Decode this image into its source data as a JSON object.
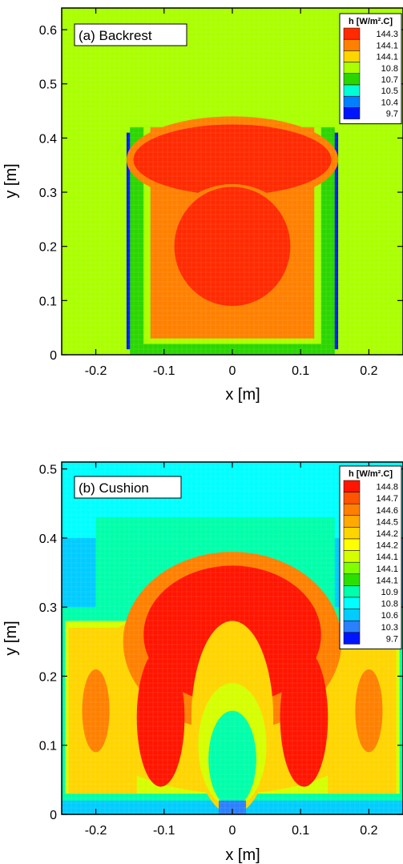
{
  "chart_data": [
    {
      "type": "heatmap",
      "panel_label": "(a) Backrest",
      "xlabel": "x [m]",
      "ylabel": "y [m]",
      "xlim": [
        -0.25,
        0.25
      ],
      "ylim": [
        0,
        0.64
      ],
      "x_ticks": [
        "-0.2",
        "-0.1",
        "0",
        "0.1",
        "0.2"
      ],
      "x_tick_values": [
        -0.2,
        -0.1,
        0,
        0.1,
        0.2
      ],
      "y_ticks": [
        "0",
        "0.1",
        "0.2",
        "0.3",
        "0.4",
        "0.5",
        "0.6"
      ],
      "y_tick_values": [
        0,
        0.1,
        0.2,
        0.3,
        0.4,
        0.5,
        0.6
      ],
      "legend": {
        "title": "h [W/m².C]",
        "position": "top-right",
        "levels": [
          "144.3",
          "144.1",
          "144.1",
          "10.8",
          "10.7",
          "10.5",
          "10.4",
          "9.7"
        ],
        "colors": [
          "#ff2a00",
          "#ff8000",
          "#ffd500",
          "#aaff00",
          "#2bd600",
          "#00ffd5",
          "#0080ff",
          "#0015ff"
        ]
      },
      "regions": [
        {
          "shape": "rect",
          "x": [
            -0.25,
            0.25
          ],
          "y": [
            0,
            0.64
          ],
          "level": "10.8"
        },
        {
          "shape": "rect",
          "x": [
            -0.155,
            -0.13
          ],
          "y": [
            0.01,
            0.41
          ],
          "level": "9.7"
        },
        {
          "shape": "rect",
          "x": [
            0.13,
            0.155
          ],
          "y": [
            0.01,
            0.41
          ],
          "level": "9.7"
        },
        {
          "shape": "rect",
          "x": [
            -0.15,
            0.15
          ],
          "y": [
            0.0,
            0.42
          ],
          "level": "10.7"
        },
        {
          "shape": "rect",
          "x": [
            -0.13,
            0.13
          ],
          "y": [
            0.02,
            0.42
          ],
          "level": "10.8"
        },
        {
          "shape": "rect",
          "x": [
            -0.12,
            0.12
          ],
          "y": [
            0.03,
            0.42
          ],
          "level": "144.1"
        },
        {
          "shape": "ellipse",
          "cx": 0,
          "cy": 0.36,
          "rx": 0.155,
          "ry": 0.08,
          "level": "144.1"
        },
        {
          "shape": "ellipse",
          "cx": 0,
          "cy": 0.36,
          "rx": 0.145,
          "ry": 0.065,
          "level": "144.3"
        },
        {
          "shape": "ellipse",
          "cx": 0,
          "cy": 0.195,
          "rx": 0.1,
          "ry": 0.12,
          "level": "144.1"
        },
        {
          "shape": "ellipse",
          "cx": 0,
          "cy": 0.2,
          "rx": 0.085,
          "ry": 0.11,
          "level": "144.3"
        }
      ]
    },
    {
      "type": "heatmap",
      "panel_label": "(b) Cushion",
      "xlabel": "x [m]",
      "ylabel": "y [m]",
      "xlim": [
        -0.25,
        0.25
      ],
      "ylim": [
        0,
        0.51
      ],
      "x_ticks": [
        "-0.2",
        "-0.1",
        "0",
        "0.1",
        "0.2"
      ],
      "x_tick_values": [
        -0.2,
        -0.1,
        0,
        0.1,
        0.2
      ],
      "y_ticks": [
        "0",
        "0.1",
        "0.2",
        "0.3",
        "0.4",
        "0.5"
      ],
      "y_tick_values": [
        0,
        0.1,
        0.2,
        0.3,
        0.4,
        0.5
      ],
      "legend": {
        "title": "h [W/m².C]",
        "position": "top-right",
        "levels": [
          "144.8",
          "144.7",
          "144.6",
          "144.5",
          "144.2",
          "144.2",
          "144.1",
          "144.1",
          "144.1",
          "10.9",
          "10.8",
          "10.6",
          "10.3",
          "9.7"
        ],
        "colors": [
          "#ff1500",
          "#ff5500",
          "#ff8000",
          "#ffaa00",
          "#ffd500",
          "#ffff00",
          "#d5ff00",
          "#80ff00",
          "#2be000",
          "#00ffaa",
          "#00ffff",
          "#00ccff",
          "#2b80ff",
          "#0015ff"
        ]
      },
      "regions": [
        {
          "shape": "rect",
          "x": [
            -0.25,
            0.25
          ],
          "y": [
            0,
            0.51
          ],
          "level": "10.6"
        },
        {
          "shape": "rect",
          "x": [
            -0.25,
            0.25
          ],
          "y": [
            0.4,
            0.51
          ],
          "level": "10.8"
        },
        {
          "shape": "rect",
          "x": [
            -0.2,
            0.15
          ],
          "y": [
            0.28,
            0.43
          ],
          "level": "10.9"
        },
        {
          "shape": "rect",
          "x": [
            -0.25,
            0.25
          ],
          "y": [
            0.02,
            0.3
          ],
          "level": "10.9"
        },
        {
          "shape": "rect",
          "x": [
            -0.245,
            0.245
          ],
          "y": [
            0.03,
            0.28
          ],
          "level": "144.1"
        },
        {
          "shape": "ellipse",
          "cx": 0,
          "cy": 0.17,
          "rx": 0.24,
          "ry": 0.14,
          "level": "144.2"
        },
        {
          "shape": "rect",
          "x": [
            -0.24,
            -0.14
          ],
          "y": [
            0.03,
            0.27
          ],
          "level": "144.2"
        },
        {
          "shape": "rect",
          "x": [
            0.14,
            0.24
          ],
          "y": [
            0.03,
            0.27
          ],
          "level": "144.2"
        },
        {
          "shape": "ellipse",
          "cx": 0,
          "cy": 0.25,
          "rx": 0.16,
          "ry": 0.13,
          "level": "144.6"
        },
        {
          "shape": "ellipse",
          "cx": 0,
          "cy": 0.26,
          "rx": 0.13,
          "ry": 0.1,
          "level": "144.8"
        },
        {
          "shape": "ellipse",
          "cx": -0.105,
          "cy": 0.14,
          "rx": 0.035,
          "ry": 0.1,
          "level": "144.8"
        },
        {
          "shape": "ellipse",
          "cx": 0.105,
          "cy": 0.14,
          "rx": 0.035,
          "ry": 0.1,
          "level": "144.8"
        },
        {
          "shape": "ellipse",
          "cx": -0.2,
          "cy": 0.15,
          "rx": 0.02,
          "ry": 0.06,
          "level": "144.6"
        },
        {
          "shape": "ellipse",
          "cx": 0.2,
          "cy": 0.15,
          "rx": 0.02,
          "ry": 0.06,
          "level": "144.6"
        },
        {
          "shape": "ellipse",
          "cx": 0,
          "cy": 0.14,
          "rx": 0.06,
          "ry": 0.14,
          "level": "144.2"
        },
        {
          "shape": "ellipse",
          "cx": 0,
          "cy": 0.1,
          "rx": 0.05,
          "ry": 0.09,
          "level": "144.1"
        },
        {
          "shape": "ellipse",
          "cx": 0,
          "cy": 0.08,
          "rx": 0.035,
          "ry": 0.07,
          "level": "10.9"
        },
        {
          "shape": "rect",
          "x": [
            -0.02,
            0.02
          ],
          "y": [
            0.0,
            0.02
          ],
          "level": "10.3"
        }
      ]
    }
  ]
}
